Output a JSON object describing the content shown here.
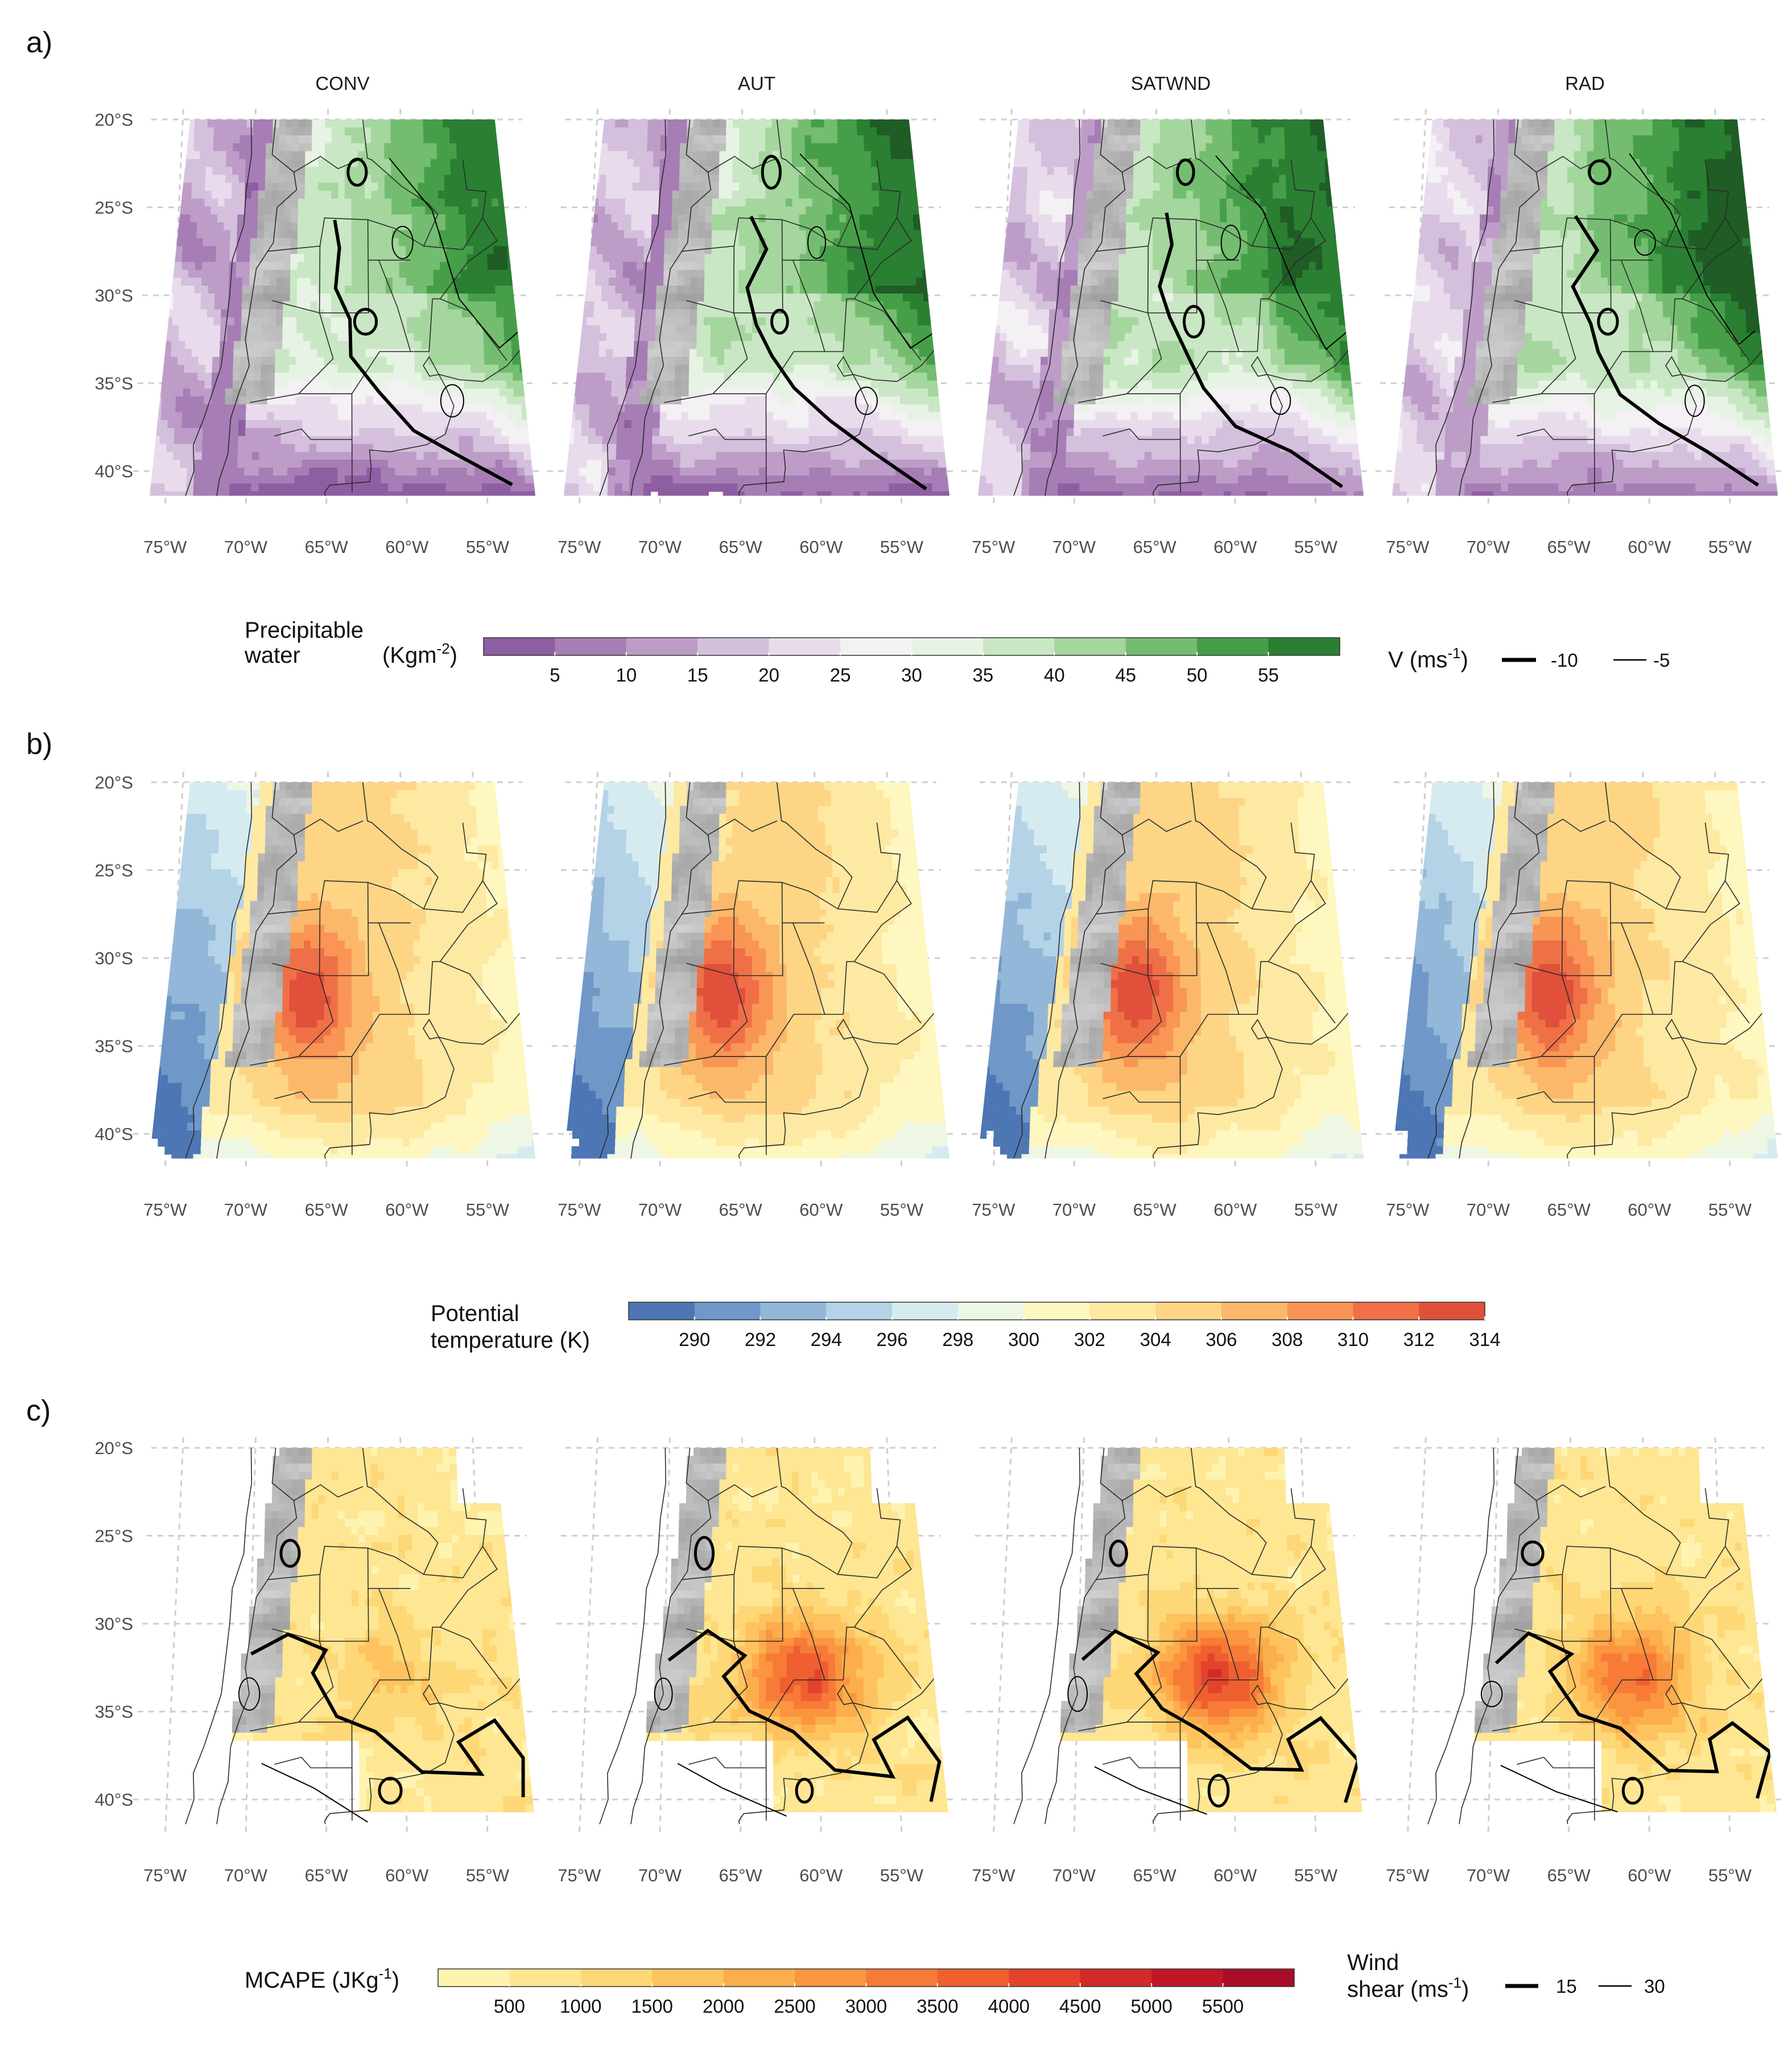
{
  "chart_data": [
    {
      "type": "heatmap",
      "panel_label": "a)",
      "facets": [
        "CONV",
        "AUT",
        "SATWND",
        "RAD"
      ],
      "x_ticks": [
        "75°W",
        "70°W",
        "65°W",
        "60°W",
        "55°W"
      ],
      "y_ticks": [
        "20°S",
        "25°S",
        "30°S",
        "35°S",
        "40°S"
      ],
      "x_range_deg_lon": [
        -76,
        -52
      ],
      "y_range_deg_lat": [
        -42,
        -20
      ],
      "grid": true,
      "fill_variable": {
        "title": "Precipitable water",
        "title_lines": [
          "Precipitable",
          "water"
        ],
        "unit_base": "(Kgm",
        "unit_sup": "-2",
        "unit_close": ")",
        "breaks": [
          5,
          10,
          15,
          20,
          25,
          30,
          35,
          40,
          45,
          50,
          55
        ],
        "palette": [
          "#8e5ea2",
          "#a67db5",
          "#bd9dc8",
          "#d4c0dc",
          "#e8dcec",
          "#f4f1f4",
          "#e7f3e4",
          "#c9e7c4",
          "#a4d69e",
          "#74bd70",
          "#469f48",
          "#2a7f33",
          "#1f5c26"
        ]
      },
      "contour_variable": {
        "title_base": "V (ms",
        "title_sup": "-1",
        "title_close": ")",
        "levels": [
          -10,
          -5
        ],
        "level_labels": [
          "-10",
          "-5"
        ],
        "line_styles": [
          "thick",
          "thin"
        ]
      },
      "colors": {
        "terrain": "#9a9a9a",
        "contour": "#000000"
      }
    },
    {
      "type": "heatmap",
      "panel_label": "b)",
      "facets": [
        "CONV",
        "AUT",
        "SATWND",
        "RAD"
      ],
      "x_ticks": [
        "75°W",
        "70°W",
        "65°W",
        "60°W",
        "55°W"
      ],
      "y_ticks": [
        "20°S",
        "25°S",
        "30°S",
        "35°S",
        "40°S"
      ],
      "x_range_deg_lon": [
        -76,
        -52
      ],
      "y_range_deg_lat": [
        -42,
        -20
      ],
      "grid": true,
      "fill_variable": {
        "title": "Potential temperature (K)",
        "title_lines": [
          "Potential",
          "temperature (K)"
        ],
        "breaks": [
          290,
          292,
          294,
          296,
          298,
          300,
          302,
          304,
          306,
          308,
          310,
          312,
          314
        ],
        "palette": [
          "#4d76b4",
          "#6f98c8",
          "#93b7d8",
          "#b4d3e6",
          "#d6ebf0",
          "#eef6e4",
          "#fff7c0",
          "#fee9a2",
          "#fdd585",
          "#fcb86a",
          "#f99555",
          "#ef7047",
          "#e0503b"
        ]
      },
      "colors": {
        "terrain": "#9a9a9a"
      }
    },
    {
      "type": "heatmap",
      "panel_label": "c)",
      "facets": [
        "CONV",
        "AUT",
        "SATWND",
        "RAD"
      ],
      "x_ticks": [
        "75°W",
        "70°W",
        "65°W",
        "60°W",
        "55°W"
      ],
      "y_ticks": [
        "20°S",
        "25°S",
        "30°S",
        "35°S",
        "40°S"
      ],
      "x_range_deg_lon": [
        -76,
        -52
      ],
      "y_range_deg_lat": [
        -42,
        -20
      ],
      "grid": true,
      "fill_variable": {
        "title_base": "MCAPE (JKg",
        "title_sup": "-1",
        "title_close": ")",
        "breaks": [
          500,
          1000,
          1500,
          2000,
          2500,
          3000,
          3500,
          4000,
          4500,
          5000,
          5500
        ],
        "palette": [
          "#fff3b0",
          "#fee692",
          "#fed776",
          "#fec35f",
          "#fdae4c",
          "#fb953f",
          "#f77b37",
          "#f05f30",
          "#e3432c",
          "#d22a28",
          "#be1728",
          "#a50e26"
        ]
      },
      "contour_variable": {
        "title_line1": "Wind",
        "title_base": "shear (ms",
        "title_sup": "-1",
        "title_close": ")",
        "levels": [
          15,
          30
        ],
        "level_labels": [
          "15",
          "30"
        ],
        "line_styles": [
          "thick",
          "thin"
        ]
      },
      "colors": {
        "terrain": "#9a9a9a",
        "contour": "#000000"
      }
    }
  ]
}
